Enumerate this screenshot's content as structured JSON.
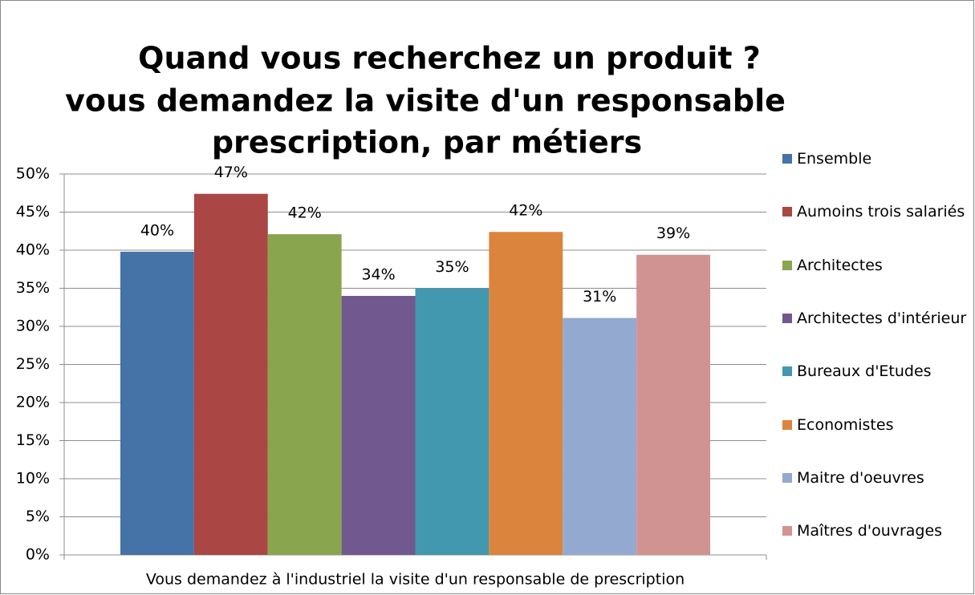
{
  "chart_data": {
    "type": "bar",
    "title": [
      "Quand vous recherchez un produit ?",
      "vous demandez la visite d'un responsable",
      "prescription, par métiers"
    ],
    "categories": [
      "Vous demandez à l'industriel la visite d'un responsable de prescription"
    ],
    "series": [
      {
        "name": "Ensemble",
        "color": "#4572a7",
        "values": [
          39.8
        ],
        "value_labels": [
          "40%"
        ]
      },
      {
        "name": "Aumoins trois salariés",
        "color": "#aa4643",
        "values": [
          47.4
        ],
        "value_labels": [
          "47%"
        ]
      },
      {
        "name": "Architectes",
        "color": "#89a54e",
        "values": [
          42.1
        ],
        "value_labels": [
          "42%"
        ]
      },
      {
        "name": "Architectes d'intérieur",
        "color": "#71588f",
        "values": [
          34
        ],
        "value_labels": [
          "34%"
        ]
      },
      {
        "name": "Bureaux d'Etudes",
        "color": "#4198af",
        "values": [
          35
        ],
        "value_labels": [
          "35%"
        ]
      },
      {
        "name": "Economistes",
        "color": "#db843d",
        "values": [
          42.4
        ],
        "value_labels": [
          "42%"
        ]
      },
      {
        "name": "Maitre d'oeuvres",
        "color": "#93a9cf",
        "values": [
          31.1
        ],
        "value_labels": [
          "31%"
        ]
      },
      {
        "name": "Maîtres d'ouvrages",
        "color": "#d19392",
        "values": [
          39.4
        ],
        "value_labels": [
          "39%"
        ]
      }
    ],
    "ylim": [
      0,
      50
    ],
    "yticks": [
      {
        "value": 0,
        "label": "0%"
      },
      {
        "value": 5,
        "label": "5%"
      },
      {
        "value": 10,
        "label": "10%"
      },
      {
        "value": 15,
        "label": "15%"
      },
      {
        "value": 20,
        "label": "20%"
      },
      {
        "value": 25,
        "label": "25%"
      },
      {
        "value": 30,
        "label": "30%"
      },
      {
        "value": 35,
        "label": "35%"
      },
      {
        "value": 40,
        "label": "40%"
      },
      {
        "value": 45,
        "label": "45%"
      },
      {
        "value": 50,
        "label": "50%"
      }
    ],
    "grid": true,
    "legend": "right"
  }
}
